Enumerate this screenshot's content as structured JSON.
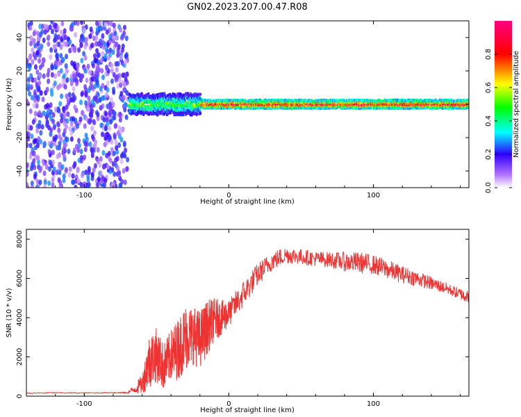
{
  "figure_title": "GN02.2023.207.00.47.R08",
  "chart_data": [
    {
      "type": "heatmap",
      "title": "GN02.2023.207.00.47.R08",
      "xlabel": "Height of straight line (km)",
      "ylabel": "Frequency (Hz)",
      "xlim": [
        -140,
        166
      ],
      "ylim": [
        -50,
        50
      ],
      "x_ticks": [
        -100,
        0,
        100
      ],
      "y_ticks": [
        -40,
        -20,
        0,
        20,
        40
      ],
      "x_tick_labels": [
        "-100",
        "0",
        "100"
      ],
      "y_tick_labels": [
        "-40",
        "-20",
        "0",
        "20",
        "40"
      ],
      "colorbar": {
        "label": "Normalized spectral amplitude",
        "range": [
          0,
          1
        ],
        "ticks": [
          0.0,
          0.2,
          0.4,
          0.6,
          0.8
        ],
        "tick_labels": [
          "0.0",
          "0.2",
          "0.4",
          "0.6",
          "0.8"
        ],
        "colors": [
          "#ffffff",
          "#7a00ff",
          "#0000ff",
          "#00ffff",
          "#00ff00",
          "#ffff00",
          "#ff0000",
          "#ff0080"
        ]
      },
      "regions": [
        {
          "name": "noise",
          "x_range": [
            -140,
            -70
          ],
          "freq_range": [
            -50,
            50
          ],
          "amplitude": 0.2
        },
        {
          "name": "onset",
          "x_range": [
            -70,
            -20
          ],
          "freq_center": 0,
          "freq_halfwidth": 5,
          "amplitude": 0.5
        },
        {
          "name": "tone",
          "x_range": [
            -20,
            166
          ],
          "freq_center": 0,
          "freq_halfwidth": 2,
          "amplitude": 0.9
        }
      ],
      "grid": false
    },
    {
      "type": "line",
      "xlabel": "Height of straight line (km)",
      "ylabel": "SNR (10 * v/v)",
      "xlim": [
        -140,
        166
      ],
      "ylim": [
        0,
        8500
      ],
      "x_ticks": [
        -100,
        0,
        100
      ],
      "y_ticks": [
        0,
        2000,
        4000,
        6000,
        8000
      ],
      "x_tick_labels": [
        "-100",
        "0",
        "100"
      ],
      "y_tick_labels": [
        "0",
        "2000",
        "4000",
        "6000",
        "8000"
      ],
      "series": [
        {
          "color": "#ee3333",
          "x": [
            -140,
            -120,
            -100,
            -80,
            -70,
            -60,
            -55,
            -50,
            -45,
            -40,
            -35,
            -30,
            -25,
            -20,
            -15,
            -10,
            -5,
            0,
            10,
            20,
            30,
            40,
            50,
            60,
            70,
            80,
            90,
            100,
            110,
            120,
            130,
            140,
            150,
            160,
            166
          ],
          "y": [
            150,
            170,
            160,
            180,
            170,
            600,
            1800,
            2100,
            1500,
            2100,
            2400,
            3000,
            3100,
            2900,
            3500,
            3900,
            4000,
            4200,
            5200,
            6200,
            6900,
            7200,
            7100,
            7000,
            6950,
            6850,
            6800,
            6700,
            6450,
            6200,
            6000,
            5750,
            5500,
            5200,
            5050
          ],
          "noise": [
            30,
            30,
            30,
            30,
            30,
            500,
            1400,
            1400,
            1200,
            1300,
            1600,
            1700,
            1500,
            1500,
            1400,
            1100,
            900,
            700,
            700,
            600,
            500,
            450,
            400,
            400,
            400,
            500,
            550,
            500,
            500,
            450,
            400,
            350,
            300,
            300,
            300
          ]
        }
      ],
      "grid": false
    }
  ]
}
